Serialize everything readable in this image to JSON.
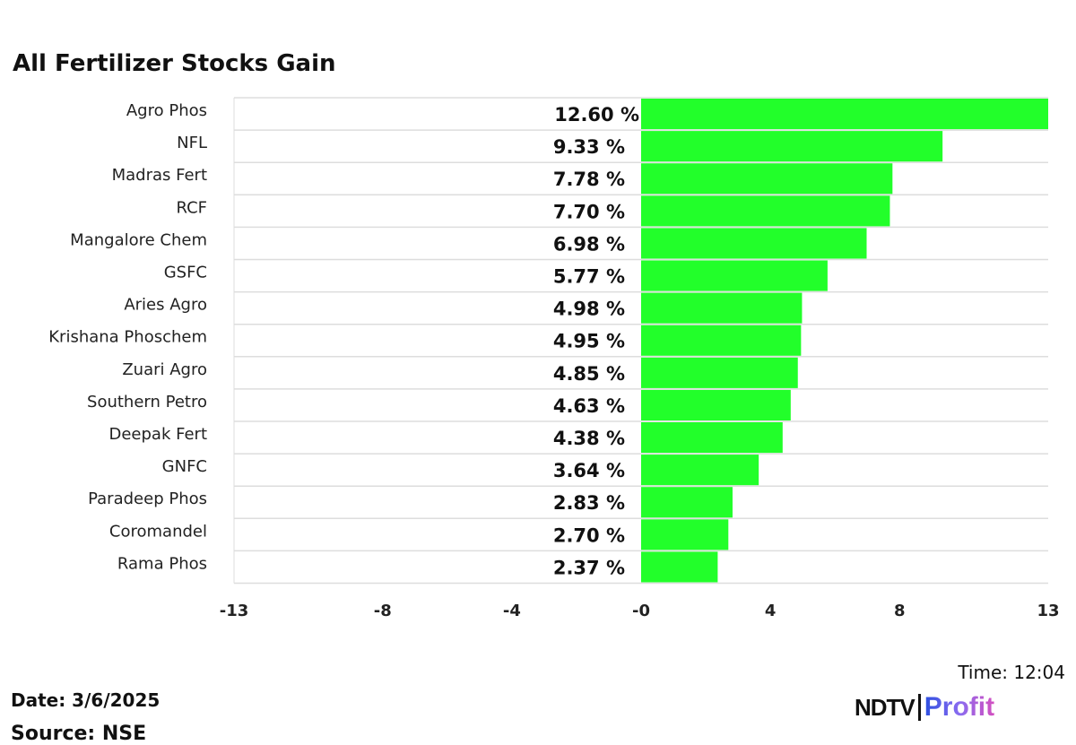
{
  "chart_data": {
    "type": "bar",
    "orientation": "horizontal",
    "title": "All Fertilizer Stocks Gain",
    "categories": [
      "Agro Phos",
      "NFL",
      "Madras Fert",
      "RCF",
      "Mangalore Chem",
      "GSFC",
      "Aries Agro",
      "Krishana Phoschem",
      "Zuari Agro",
      "Southern Petro",
      "Deepak Fert",
      "GNFC",
      "Paradeep Phos",
      "Coromandel",
      "Rama Phos"
    ],
    "values": [
      12.6,
      9.33,
      7.78,
      7.7,
      6.98,
      5.77,
      4.98,
      4.95,
      4.85,
      4.63,
      4.38,
      3.64,
      2.83,
      2.7,
      2.37
    ],
    "value_labels": [
      "12.60 %",
      "9.33 %",
      "7.78 %",
      "7.70 %",
      "6.98 %",
      "5.77 %",
      "4.98 %",
      "4.95 %",
      "4.85 %",
      "4.63 %",
      "4.38 %",
      "3.64 %",
      "2.83 %",
      "2.70 %",
      "2.37 %"
    ],
    "xlim": [
      -12.6,
      12.6
    ],
    "ticks": [
      {
        "value": -12.6,
        "label": "-13"
      },
      {
        "value": -8,
        "label": "-8"
      },
      {
        "value": -4,
        "label": "-4"
      },
      {
        "value": 0,
        "label": "-0"
      },
      {
        "value": 4,
        "label": "4"
      },
      {
        "value": 8,
        "label": "8"
      },
      {
        "value": 12.6,
        "label": "13"
      }
    ],
    "bar_color": "#22ff2a",
    "grid": "horizontal row separators"
  },
  "footer": {
    "date": "Date: 3/6/2025",
    "source": "Source: NSE",
    "time": "Time: 12:04",
    "logo_ndtv": "NDTV",
    "logo_profit": "Profit"
  }
}
